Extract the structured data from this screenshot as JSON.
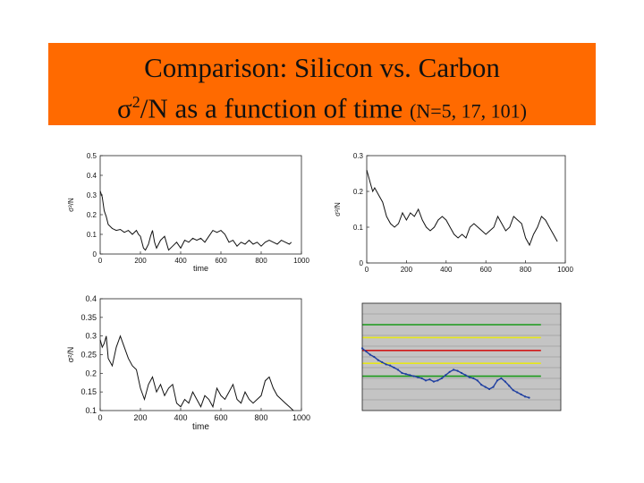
{
  "title": {
    "line1": "Comparison: Silicon vs. Carbon",
    "sigma": "σ",
    "sup": "2",
    "line2_rest": "/N as a function of time ",
    "paren": "(N=5, 17, 101)"
  },
  "colors": {
    "banner": "#ff6a00",
    "trace": "#111111",
    "blue_trace": "#1f3fa0",
    "green": "#1a9a1a",
    "yellow": "#e6e61a",
    "red": "#d01818",
    "panel_gray": "#c4c4c4"
  },
  "chart_data": [
    {
      "type": "line",
      "xlabel": "time",
      "ylabel": "σ²/N",
      "xlim": [
        0,
        1000
      ],
      "ylim": [
        0,
        0.5
      ],
      "xticks": [
        "0",
        "200",
        "400",
        "600",
        "800",
        "1000"
      ],
      "yticks": [
        "0",
        "0.1",
        "0.2",
        "0.3",
        "0.4",
        "0.5"
      ],
      "series": [
        {
          "x": [
            0,
            10,
            20,
            30,
            40,
            60,
            80,
            100,
            120,
            140,
            160,
            180,
            190,
            200,
            215,
            225,
            240,
            250,
            260,
            270,
            280,
            300,
            320,
            340,
            360,
            380,
            400,
            420,
            440,
            460,
            480,
            500,
            520,
            540,
            560,
            580,
            600,
            620,
            640,
            660,
            680,
            700,
            720,
            740,
            760,
            780,
            800,
            820,
            840,
            860,
            880,
            900,
            920,
            940,
            950
          ],
          "y": [
            0.32,
            0.29,
            0.22,
            0.19,
            0.15,
            0.13,
            0.12,
            0.125,
            0.11,
            0.12,
            0.1,
            0.12,
            0.1,
            0.09,
            0.03,
            0.02,
            0.05,
            0.09,
            0.12,
            0.06,
            0.03,
            0.07,
            0.09,
            0.02,
            0.04,
            0.06,
            0.03,
            0.07,
            0.06,
            0.08,
            0.07,
            0.08,
            0.06,
            0.09,
            0.12,
            0.11,
            0.12,
            0.1,
            0.06,
            0.07,
            0.04,
            0.06,
            0.05,
            0.07,
            0.05,
            0.06,
            0.04,
            0.06,
            0.07,
            0.06,
            0.05,
            0.07,
            0.06,
            0.05,
            0.06
          ]
        }
      ]
    },
    {
      "type": "line",
      "xlabel": "",
      "ylabel": "σ²/N",
      "xlim": [
        0,
        1000
      ],
      "ylim": [
        0,
        0.3
      ],
      "xticks": [
        "0",
        "200",
        "400",
        "600",
        "800",
        "1000"
      ],
      "yticks": [
        "0",
        "0.1",
        "0.2",
        "0.3"
      ],
      "series": [
        {
          "x": [
            0,
            10,
            20,
            30,
            40,
            60,
            80,
            100,
            120,
            140,
            160,
            180,
            200,
            220,
            240,
            260,
            280,
            300,
            320,
            340,
            360,
            380,
            400,
            420,
            440,
            460,
            480,
            500,
            520,
            540,
            560,
            580,
            600,
            620,
            640,
            660,
            680,
            700,
            720,
            740,
            760,
            780,
            800,
            820,
            840,
            860,
            880,
            900,
            920,
            940,
            960
          ],
          "y": [
            0.26,
            0.24,
            0.22,
            0.2,
            0.21,
            0.19,
            0.17,
            0.13,
            0.11,
            0.1,
            0.11,
            0.14,
            0.12,
            0.14,
            0.13,
            0.15,
            0.12,
            0.1,
            0.09,
            0.1,
            0.12,
            0.13,
            0.12,
            0.1,
            0.08,
            0.07,
            0.08,
            0.07,
            0.1,
            0.11,
            0.1,
            0.09,
            0.08,
            0.09,
            0.1,
            0.13,
            0.11,
            0.09,
            0.1,
            0.13,
            0.12,
            0.11,
            0.07,
            0.05,
            0.08,
            0.1,
            0.13,
            0.12,
            0.1,
            0.08,
            0.06
          ]
        }
      ]
    },
    {
      "type": "line",
      "xlabel": "time",
      "ylabel": "σ²/N",
      "xlim": [
        0,
        1000
      ],
      "ylim": [
        0.1,
        0.4
      ],
      "xticks": [
        "0",
        "200",
        "400",
        "600",
        "800",
        "1000"
      ],
      "yticks": [
        "0.1",
        "0.15",
        "0.2",
        "0.25",
        "0.3",
        "0.35",
        "0.4"
      ],
      "series": [
        {
          "x": [
            0,
            10,
            20,
            30,
            40,
            60,
            80,
            100,
            120,
            140,
            160,
            180,
            200,
            220,
            240,
            260,
            280,
            300,
            320,
            340,
            360,
            380,
            400,
            420,
            440,
            460,
            480,
            500,
            520,
            540,
            560,
            580,
            600,
            620,
            640,
            660,
            680,
            700,
            720,
            740,
            760,
            780,
            800,
            820,
            840,
            860,
            880,
            900,
            920,
            940,
            960
          ],
          "y": [
            0.29,
            0.27,
            0.28,
            0.3,
            0.24,
            0.22,
            0.27,
            0.3,
            0.27,
            0.24,
            0.22,
            0.21,
            0.16,
            0.13,
            0.17,
            0.19,
            0.15,
            0.17,
            0.14,
            0.16,
            0.17,
            0.12,
            0.11,
            0.13,
            0.12,
            0.15,
            0.13,
            0.11,
            0.14,
            0.13,
            0.11,
            0.16,
            0.14,
            0.13,
            0.15,
            0.17,
            0.13,
            0.12,
            0.15,
            0.13,
            0.12,
            0.13,
            0.14,
            0.18,
            0.19,
            0.16,
            0.14,
            0.13,
            0.12,
            0.11,
            0.1
          ]
        }
      ]
    },
    {
      "type": "line",
      "xlabel": "",
      "ylabel": "",
      "xlim": [
        0,
        1000
      ],
      "ylim": [
        0,
        1
      ],
      "xticks": [],
      "yticks": [],
      "reference_lines": [
        {
          "color": "green",
          "y": 0.8
        },
        {
          "color": "yellow",
          "y": 0.68
        },
        {
          "color": "red",
          "y": 0.56
        },
        {
          "color": "yellow",
          "y": 0.44
        },
        {
          "color": "green",
          "y": 0.32
        }
      ],
      "series": [
        {
          "x": [
            0,
            20,
            40,
            60,
            80,
            100,
            120,
            140,
            160,
            180,
            200,
            220,
            240,
            260,
            280,
            300,
            320,
            340,
            360,
            380,
            400,
            420,
            440,
            460,
            480,
            500,
            520,
            540,
            560,
            580,
            600,
            620,
            640,
            660,
            680,
            700,
            720,
            740,
            760,
            780,
            800,
            820,
            840
          ],
          "y": [
            0.58,
            0.55,
            0.52,
            0.5,
            0.47,
            0.45,
            0.43,
            0.42,
            0.4,
            0.38,
            0.35,
            0.34,
            0.33,
            0.32,
            0.31,
            0.3,
            0.28,
            0.29,
            0.27,
            0.28,
            0.3,
            0.33,
            0.36,
            0.38,
            0.37,
            0.35,
            0.33,
            0.31,
            0.3,
            0.28,
            0.24,
            0.22,
            0.2,
            0.22,
            0.28,
            0.3,
            0.27,
            0.23,
            0.19,
            0.17,
            0.15,
            0.13,
            0.12
          ]
        }
      ]
    }
  ]
}
